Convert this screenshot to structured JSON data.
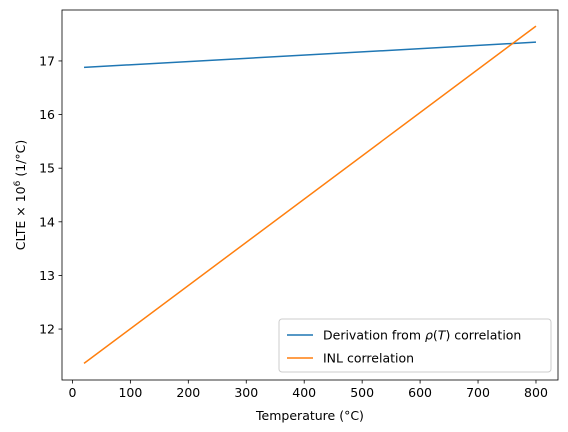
{
  "chart_data": {
    "type": "line",
    "xlabel": "Temperature (°C)",
    "ylabel_parts": {
      "base": "CLTE × 10",
      "exp": "6",
      "unit": " (1/°C)"
    },
    "xlim": [
      -18,
      838
    ],
    "ylim": [
      11.05,
      17.95
    ],
    "xticks": [
      0,
      100,
      200,
      300,
      400,
      500,
      600,
      700,
      800
    ],
    "yticks": [
      12,
      13,
      14,
      15,
      16,
      17
    ],
    "grid": false,
    "legend_position": "lower-right",
    "series": [
      {
        "name_parts": {
          "pre": "Derivation from ",
          "italic_rho": "ρ",
          "mid": "(",
          "italic_T": "T",
          "post": ") correlation"
        },
        "color": "#1f77b4",
        "x": [
          20,
          800
        ],
        "y": [
          16.88,
          17.35
        ]
      },
      {
        "name": "INL correlation",
        "color": "#ff7f0e",
        "x": [
          20,
          800
        ],
        "y": [
          11.36,
          17.65
        ]
      }
    ]
  }
}
